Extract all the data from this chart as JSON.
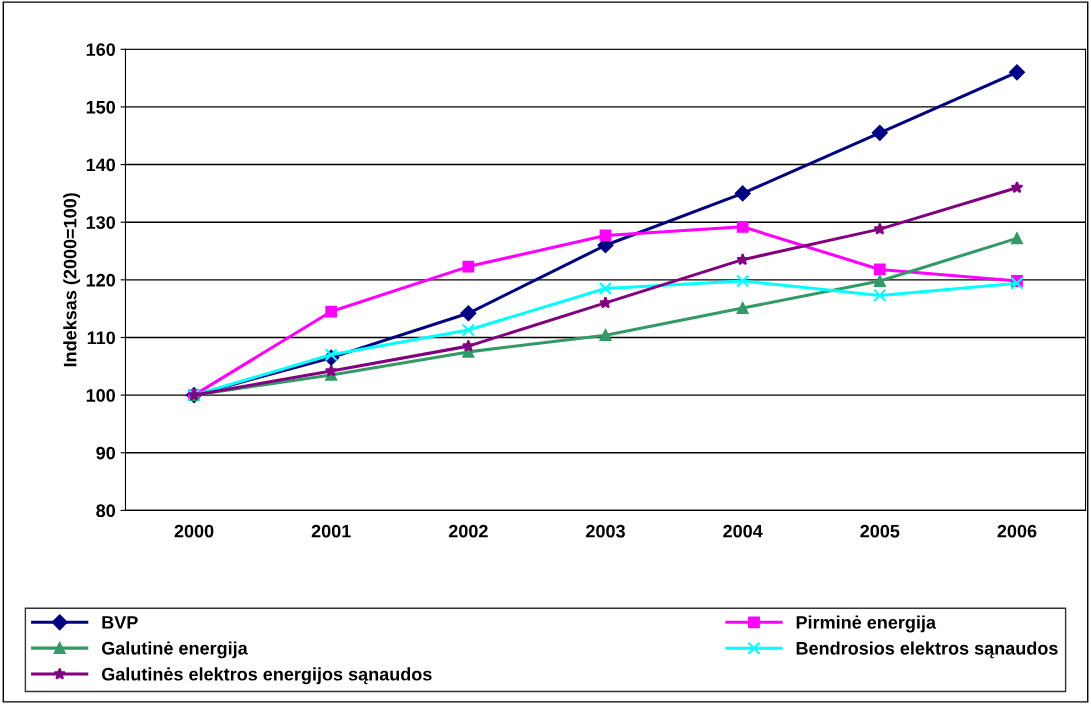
{
  "chart_data": {
    "type": "line",
    "ylabel": "Indeksas (2000=100)",
    "categories": [
      "2000",
      "2001",
      "2002",
      "2003",
      "2004",
      "2005",
      "2006"
    ],
    "series": [
      {
        "name": "BVP",
        "color": "#000080",
        "marker": "diamond",
        "values": [
          100,
          106.5,
          114.2,
          126,
          135,
          145.5,
          156
        ]
      },
      {
        "name": "Pirminė energija",
        "color": "#ff00ff",
        "marker": "square",
        "values": [
          100,
          114.5,
          122.3,
          127.7,
          129.2,
          121.8,
          119.8
        ]
      },
      {
        "name": "Galutinė energija",
        "color": "#339966",
        "marker": "triangle",
        "values": [
          100,
          103.5,
          107.5,
          110.4,
          115.1,
          119.8,
          127.2
        ]
      },
      {
        "name": "Bendrosios elektros sąnaudos",
        "color": "#00ffff",
        "marker": "cross",
        "values": [
          100,
          107,
          111.3,
          118.5,
          119.8,
          117.3,
          119.4
        ]
      },
      {
        "name": "Galutinės elektros energijos sąnaudos",
        "color": "#800080",
        "marker": "star",
        "values": [
          100,
          104.2,
          108.5,
          116,
          123.5,
          128.8,
          136
        ]
      }
    ],
    "ylim": [
      80,
      160
    ],
    "yticks": [
      80,
      90,
      100,
      110,
      120,
      130,
      140,
      150,
      160
    ],
    "grid": "y",
    "legend": "bottom",
    "line_style": "solid"
  }
}
